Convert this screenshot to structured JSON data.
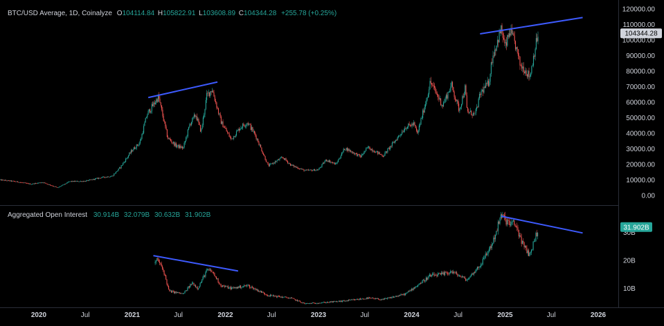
{
  "header": {
    "symbol": "BTC/USD Average, 1D, Coinalyze",
    "o_label": "O",
    "o_value": "104114.84",
    "h_label": "H",
    "h_value": "105822.91",
    "l_label": "L",
    "l_value": "103608.89",
    "c_label": "C",
    "c_value": "104344.28",
    "change": "+255.78 (+0.25%)"
  },
  "oi_header": {
    "title": "Aggregated Open Interest",
    "v1": "30.914B",
    "v2": "32.079B",
    "v3": "30.632B",
    "v4": "31.902B"
  },
  "colors": {
    "up": "#26a69a",
    "down": "#ef5350",
    "trendline": "#3d5afe",
    "text": "#d1d4dc",
    "grid": "#2a2e39",
    "price_tag": "#d1d4dc",
    "oi_tag": "#26a69a"
  },
  "chart_data": [
    {
      "type": "candlestick",
      "title": "BTC/USD Average, 1D, Coinalyze",
      "price_tag": "104344.28",
      "y_ticks": [
        "120000.00",
        "110000.00",
        "100000.00",
        "90000.00",
        "80000.00",
        "70000.00",
        "60000.00",
        "50000.00",
        "40000.00",
        "30000.00",
        "20000.00",
        "10000.00",
        "0.00"
      ],
      "ylim": [
        0,
        120000
      ],
      "x_ticks": [
        "2020",
        "Jul",
        "2021",
        "Jul",
        "2022",
        "Jul",
        "2023",
        "Jul",
        "2024",
        "Jul",
        "2025",
        "Jul",
        "2026"
      ],
      "x_tick_dates": [
        "2020-01-01",
        "2020-07-01",
        "2021-01-01",
        "2021-07-01",
        "2022-01-01",
        "2022-07-01",
        "2023-01-01",
        "2023-07-01",
        "2024-01-01",
        "2024-07-01",
        "2025-01-01",
        "2025-07-01",
        "2026-01-01"
      ],
      "series": [
        {
          "x": [
            "2019-08-01",
            "2019-10-01",
            "2019-12-01",
            "2020-01-15",
            "2020-03-15",
            "2020-05-01",
            "2020-07-01",
            "2020-09-01",
            "2020-10-15",
            "2020-11-15",
            "2020-12-31",
            "2021-01-31",
            "2021-02-28",
            "2021-04-14",
            "2021-05-20",
            "2021-06-22",
            "2021-07-20",
            "2021-08-15",
            "2021-09-07",
            "2021-09-28",
            "2021-10-20",
            "2021-11-10",
            "2021-12-15",
            "2022-01-24",
            "2022-03-01",
            "2022-03-30",
            "2022-05-01",
            "2022-06-18",
            "2022-08-14",
            "2022-09-15",
            "2022-11-09",
            "2022-12-31",
            "2023-01-31",
            "2023-03-10",
            "2023-04-14",
            "2023-06-15",
            "2023-07-14",
            "2023-09-11",
            "2023-10-25",
            "2023-12-08",
            "2024-01-10",
            "2024-01-23",
            "2024-02-28",
            "2024-03-14",
            "2024-05-01",
            "2024-06-05",
            "2024-07-05",
            "2024-07-29",
            "2024-08-05",
            "2024-09-06",
            "2024-09-27",
            "2024-10-29",
            "2024-11-12",
            "2024-12-17",
            "2025-01-02",
            "2025-01-20",
            "2025-02-10",
            "2025-03-01",
            "2025-03-15",
            "2025-04-08",
            "2025-05-01",
            "2025-05-12"
          ],
          "close": [
            10000,
            9000,
            7300,
            8500,
            5000,
            9000,
            9200,
            11500,
            12500,
            18000,
            29000,
            34000,
            52000,
            63500,
            37000,
            32000,
            30500,
            46000,
            52000,
            41000,
            64000,
            68500,
            47500,
            36000,
            44000,
            47000,
            38000,
            19000,
            24500,
            19500,
            16000,
            16500,
            23000,
            20000,
            30500,
            25000,
            31000,
            25500,
            34500,
            44000,
            46000,
            39500,
            62000,
            73000,
            58000,
            71000,
            55000,
            69500,
            54000,
            52000,
            66000,
            72500,
            89000,
            107000,
            95000,
            106000,
            97000,
            84000,
            82000,
            76500,
            97000,
            104344
          ]
        }
      ],
      "trendlines": [
        {
          "from": [
            "2021-03-05",
            63000
          ],
          "to": [
            "2021-12-01",
            73000
          ]
        },
        {
          "from": [
            "2024-09-25",
            104000
          ],
          "to": [
            "2025-11-01",
            114500
          ]
        }
      ]
    },
    {
      "type": "candlestick",
      "title": "Aggregated Open Interest",
      "price_tag": "31.902B",
      "y_ticks": [
        "30B",
        "20B",
        "10B"
      ],
      "ylim": [
        0,
        40
      ],
      "series": [
        {
          "x": [
            "2021-04-01",
            "2021-04-10",
            "2021-05-05",
            "2021-05-25",
            "2021-07-20",
            "2021-08-25",
            "2021-09-15",
            "2021-10-21",
            "2021-11-10",
            "2021-12-15",
            "2022-01-25",
            "2022-03-30",
            "2022-06-18",
            "2022-09-15",
            "2022-11-09",
            "2023-01-31",
            "2023-04-14",
            "2023-07-14",
            "2023-09-11",
            "2023-12-08",
            "2024-03-14",
            "2024-05-01",
            "2024-06-05",
            "2024-08-05",
            "2024-09-27",
            "2024-11-12",
            "2024-12-17",
            "2025-01-20",
            "2025-02-10",
            "2025-03-15",
            "2025-04-08",
            "2025-05-12"
          ],
          "close": [
            19,
            20.5,
            16,
            9,
            8,
            12,
            10,
            16.5,
            16,
            11,
            10,
            11,
            7.5,
            6.5,
            4.5,
            5,
            5.5,
            6.5,
            6,
            8,
            14.5,
            15,
            16,
            13,
            18.5,
            26,
            36,
            33,
            33,
            25,
            22,
            31.9
          ]
        }
      ],
      "trendlines": [
        {
          "from": [
            "2021-03-25",
            21.7
          ],
          "to": [
            "2022-02-20",
            16.2
          ]
        },
        {
          "from": [
            "2024-12-17",
            35.8
          ],
          "to": [
            "2025-11-01",
            29.8
          ]
        }
      ]
    }
  ]
}
